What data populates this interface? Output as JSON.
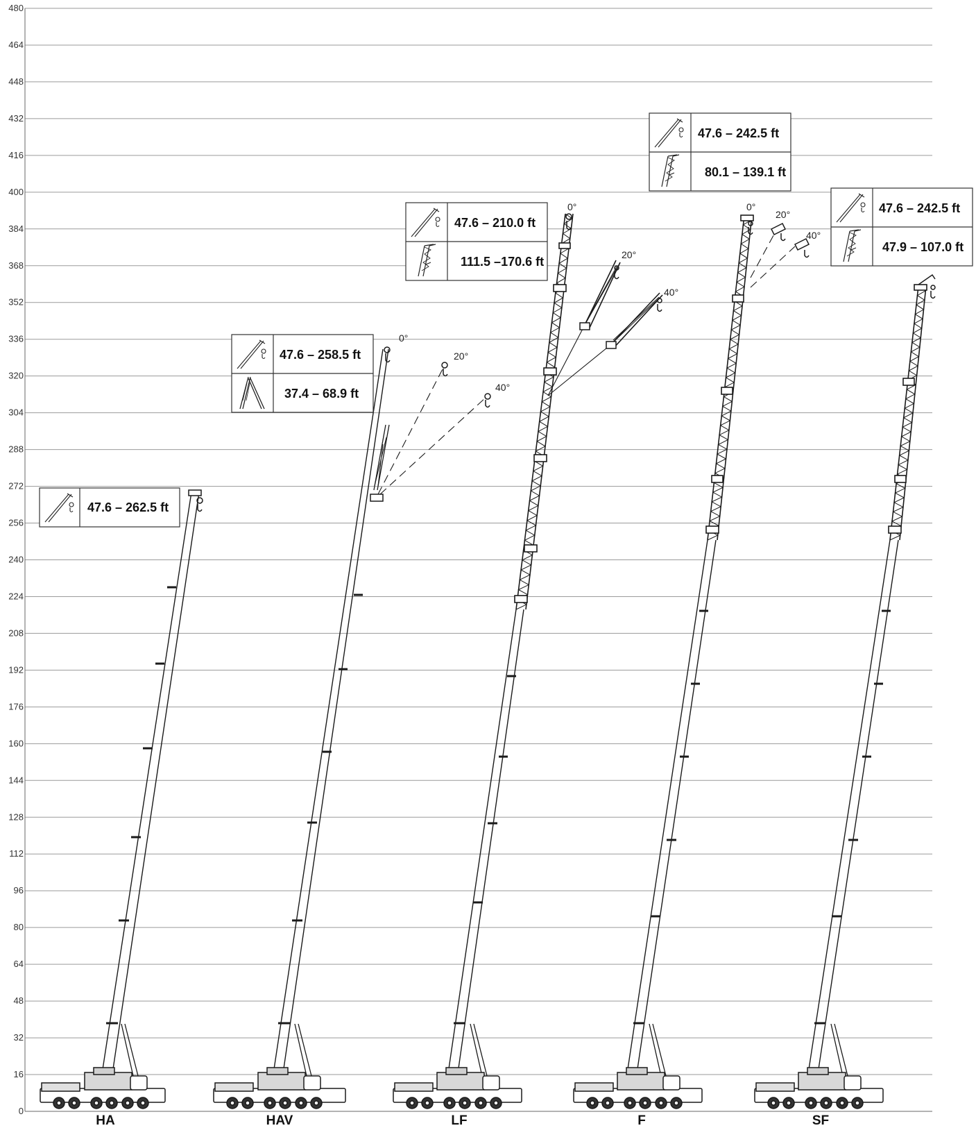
{
  "y_axis": {
    "min": 0,
    "max": 480,
    "step": 16,
    "tick_labels": [
      "0",
      "16",
      "32",
      "48",
      "64",
      "80",
      "96",
      "112",
      "128",
      "144",
      "160",
      "176",
      "192",
      "208",
      "224",
      "240",
      "256",
      "272",
      "288",
      "304",
      "320",
      "336",
      "352",
      "368",
      "384",
      "400",
      "416",
      "432",
      "448",
      "464",
      "480"
    ]
  },
  "configurations": [
    {
      "id": "ha",
      "label": "HA",
      "tip_height": 269,
      "ranges": [
        {
          "icon": "main-boom-icon",
          "text": "47.6 – 262.5 ft"
        }
      ],
      "angles": []
    },
    {
      "id": "hav",
      "label": "HAV",
      "tip_height": 330,
      "ranges": [
        {
          "icon": "main-boom-icon",
          "text": "47.6 – 258.5 ft"
        },
        {
          "icon": "folding-jib-icon",
          "text": "37.4 – 68.9 ft"
        }
      ],
      "angles": [
        {
          "label": "0°",
          "tip_height": 330
        },
        {
          "label": "20°",
          "tip_height": 324
        },
        {
          "label": "40°",
          "tip_height": 311
        }
      ]
    },
    {
      "id": "lf",
      "label": "LF",
      "tip_height": 390,
      "ranges": [
        {
          "icon": "main-boom-icon",
          "text": "47.6 – 210.0 ft"
        },
        {
          "icon": "lattice-jib-icon",
          "text": "111.5 –170.6 ft"
        }
      ],
      "angles": [
        {
          "label": "0°",
          "tip_height": 390
        },
        {
          "label": "20°",
          "tip_height": 369
        },
        {
          "label": "40°",
          "tip_height": 355
        }
      ]
    },
    {
      "id": "f",
      "label": "F",
      "tip_height": 389,
      "ranges": [
        {
          "icon": "main-boom-icon",
          "text": "47.6 – 242.5 ft"
        },
        {
          "icon": "lattice-jib-icon",
          "text": "80.1 – 139.1 ft"
        }
      ],
      "angles": [
        {
          "label": "0°",
          "tip_height": 389
        },
        {
          "label": "20°",
          "tip_height": 384
        },
        {
          "label": "40°",
          "tip_height": 378
        }
      ]
    },
    {
      "id": "sf",
      "label": "SF",
      "tip_height": 361,
      "ranges": [
        {
          "icon": "main-boom-icon",
          "text": "47.6 – 242.5 ft"
        },
        {
          "icon": "lattice-jib-icon",
          "text": "47.9 – 107.0 ft"
        }
      ],
      "angles": []
    }
  ],
  "colors": {
    "grid": "#9a9a9a",
    "line": "#1a1a1a",
    "box_border": "#333333"
  }
}
